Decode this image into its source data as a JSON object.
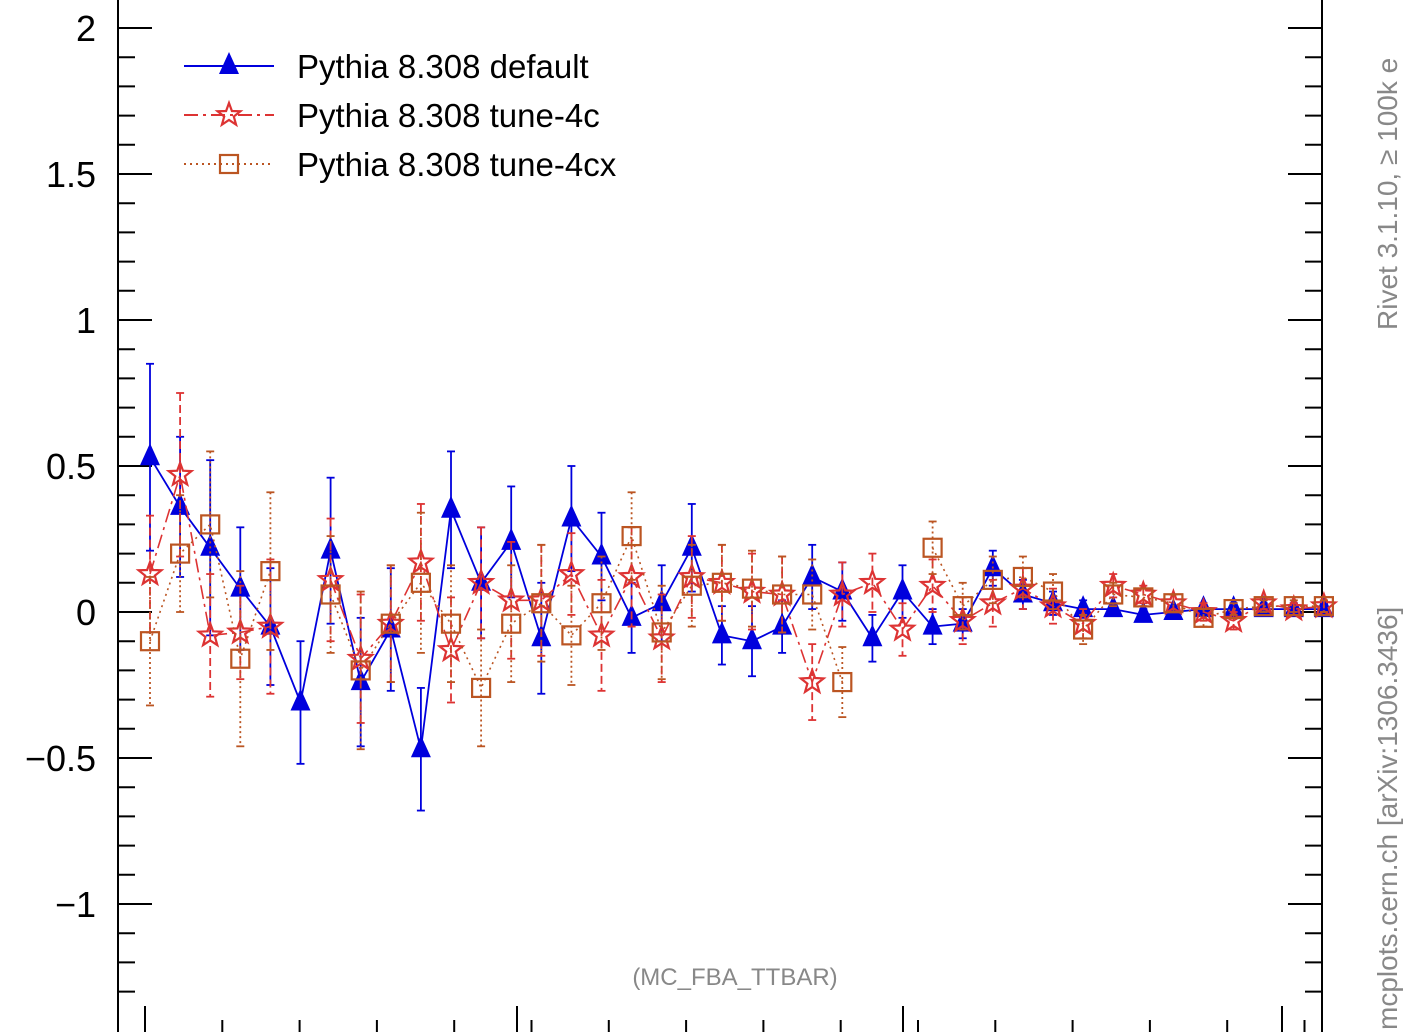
{
  "chart_data": {
    "type": "scatter",
    "title": "",
    "xlabel": "",
    "ylabel": "",
    "ylim": [
      -1.38,
      2.08
    ],
    "yticks": [
      "2",
      "1.5",
      "1",
      "0.5",
      "0",
      "−0.5",
      "−1"
    ],
    "ytick_values": [
      2,
      1.5,
      1,
      0.5,
      0,
      -0.5,
      -1
    ],
    "x": [
      1,
      2,
      3,
      4,
      5,
      6,
      7,
      8,
      9,
      10,
      11,
      12,
      13,
      14,
      15,
      16,
      17,
      18,
      19,
      20,
      21,
      22,
      23,
      24,
      25,
      26,
      27,
      28,
      29,
      30,
      31,
      32,
      33,
      34,
      35,
      36,
      37,
      38,
      39,
      40
    ],
    "legend_position": "top-left",
    "annotation": "(MC_FBA_TTBAR)",
    "side_text_top": "Rivet 3.1.10, ≥ 100k e",
    "side_text_bottom": "mcplots.cern.ch [arXiv:1306.3436]",
    "series": [
      {
        "name": "Pythia 8.308 default",
        "color": "#0000dd",
        "marker": "triangle",
        "values": [
          0.53,
          0.36,
          0.22,
          0.08,
          -0.05,
          -0.31,
          0.21,
          -0.24,
          -0.06,
          -0.47,
          0.35,
          0.1,
          0.24,
          -0.09,
          0.32,
          0.19,
          -0.02,
          0.03,
          0.22,
          -0.08,
          -0.1,
          -0.05,
          0.12,
          0.07,
          -0.09,
          0.07,
          -0.05,
          -0.04,
          0.15,
          0.06,
          0.03,
          0.01,
          0.01,
          -0.01,
          0.0,
          0.01,
          0.01,
          0.01,
          0.01,
          0.01
        ],
        "errors": [
          0.32,
          0.24,
          0.3,
          0.21,
          0.2,
          0.21,
          0.25,
          0.22,
          0.21,
          0.21,
          0.2,
          0.19,
          0.19,
          0.19,
          0.18,
          0.15,
          0.12,
          0.13,
          0.15,
          0.1,
          0.12,
          0.09,
          0.11,
          0.1,
          0.08,
          0.09,
          0.06,
          0.05,
          0.06,
          0.05,
          0.04,
          0.03,
          0.02,
          0.02,
          0.02,
          0.02,
          0.02,
          0.02,
          0.02,
          0.02
        ]
      },
      {
        "name": "Pythia 8.308 tune-4c",
        "color": "#dd3333",
        "marker": "star",
        "values": [
          0.13,
          0.47,
          -0.08,
          -0.07,
          -0.05,
          null,
          0.11,
          -0.16,
          -0.04,
          0.17,
          -0.13,
          0.1,
          0.04,
          0.04,
          0.13,
          -0.08,
          0.12,
          -0.09,
          0.12,
          0.1,
          0.07,
          0.06,
          -0.24,
          0.06,
          0.1,
          -0.06,
          0.09,
          -0.03,
          0.03,
          0.08,
          0.02,
          -0.04,
          0.09,
          0.06,
          0.03,
          0.0,
          -0.03,
          0.03,
          0.01,
          0.02
        ],
        "errors": [
          0.2,
          0.28,
          0.21,
          0.16,
          0.23,
          null,
          0.21,
          0.22,
          0.2,
          0.2,
          0.18,
          0.19,
          0.2,
          0.19,
          0.14,
          0.19,
          0.17,
          0.15,
          0.14,
          0.13,
          0.13,
          0.13,
          0.13,
          0.11,
          0.1,
          0.09,
          0.09,
          0.08,
          0.08,
          0.07,
          0.06,
          0.05,
          0.04,
          0.03,
          0.03,
          0.03,
          0.03,
          0.02,
          0.02,
          0.02
        ]
      },
      {
        "name": "Pythia 8.308 tune-4cx",
        "color": "#bb5522",
        "marker": "open-square",
        "values": [
          -0.1,
          0.2,
          0.3,
          -0.16,
          0.14,
          null,
          0.06,
          -0.2,
          -0.04,
          0.1,
          -0.04,
          -0.26,
          -0.04,
          0.03,
          -0.08,
          0.03,
          0.26,
          -0.07,
          0.09,
          0.1,
          0.08,
          0.06,
          0.06,
          -0.24,
          null,
          null,
          0.22,
          0.02,
          0.11,
          0.12,
          0.07,
          -0.06,
          0.06,
          0.05,
          0.03,
          -0.02,
          0.01,
          0.02,
          0.02,
          0.02
        ],
        "errors": [
          0.22,
          0.2,
          0.25,
          0.3,
          0.27,
          null,
          0.2,
          0.27,
          0.2,
          0.24,
          0.2,
          0.2,
          0.2,
          0.2,
          0.17,
          0.16,
          0.15,
          0.16,
          0.14,
          0.13,
          0.13,
          0.13,
          0.12,
          0.12,
          null,
          null,
          0.09,
          0.08,
          0.08,
          0.07,
          0.06,
          0.05,
          0.04,
          0.03,
          0.03,
          0.03,
          0.02,
          0.02,
          0.02,
          0.02
        ]
      }
    ]
  }
}
